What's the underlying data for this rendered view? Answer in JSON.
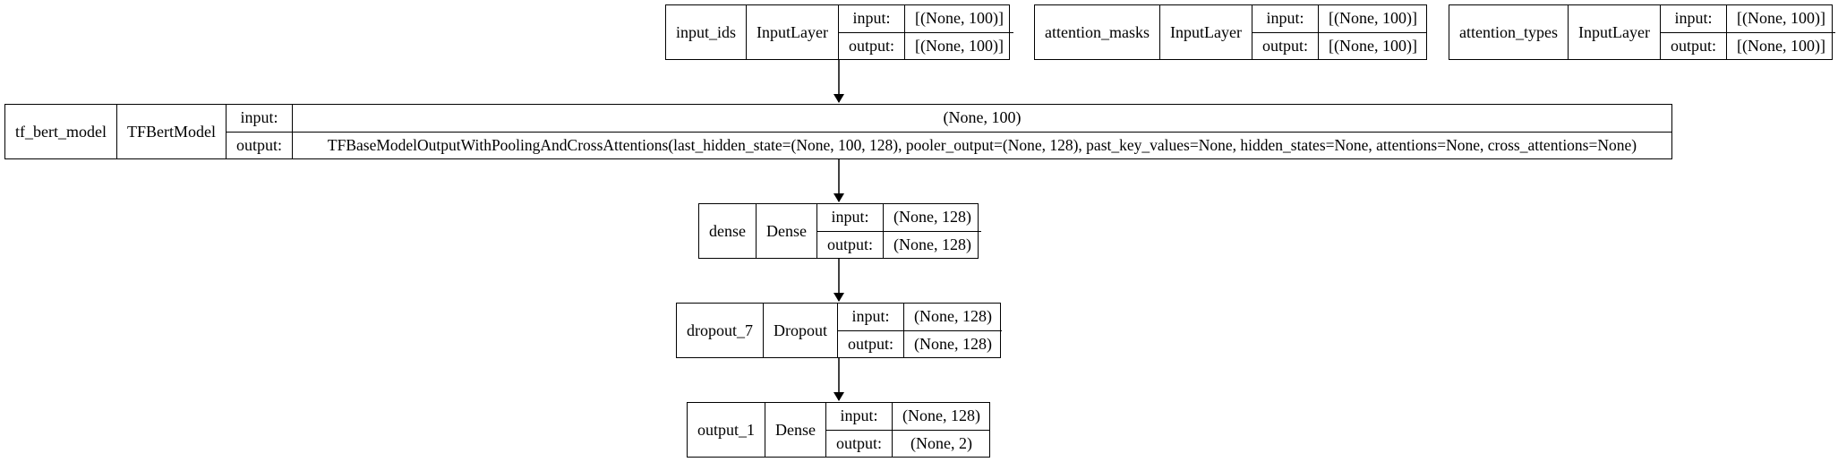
{
  "nodes": [
    {
      "name": "input_ids",
      "class": "InputLayer",
      "input_label": "input:",
      "output_label": "output:",
      "input": "[(None, 100)]",
      "output": "[(None, 100)]"
    },
    {
      "name": "attention_masks",
      "class": "InputLayer",
      "input_label": "input:",
      "output_label": "output:",
      "input": "[(None, 100)]",
      "output": "[(None, 100)]"
    },
    {
      "name": "attention_types",
      "class": "InputLayer",
      "input_label": "input:",
      "output_label": "output:",
      "input": "[(None, 100)]",
      "output": "[(None, 100)]"
    },
    {
      "name": "tf_bert_model",
      "class": "TFBertModel",
      "input_label": "input:",
      "output_label": "output:",
      "input": "(None, 100)",
      "output": "TFBaseModelOutputWithPoolingAndCrossAttentions(last_hidden_state=(None, 100, 128), pooler_output=(None, 128), past_key_values=None, hidden_states=None, attentions=None, cross_attentions=None)"
    },
    {
      "name": "dense",
      "class": "Dense",
      "input_label": "input:",
      "output_label": "output:",
      "input": "(None, 128)",
      "output": "(None, 128)"
    },
    {
      "name": "dropout_7",
      "class": "Dropout",
      "input_label": "input:",
      "output_label": "output:",
      "input": "(None, 128)",
      "output": "(None, 128)"
    },
    {
      "name": "output_1",
      "class": "Dense",
      "input_label": "input:",
      "output_label": "output:",
      "input": "(None, 128)",
      "output": "(None, 2)"
    }
  ]
}
